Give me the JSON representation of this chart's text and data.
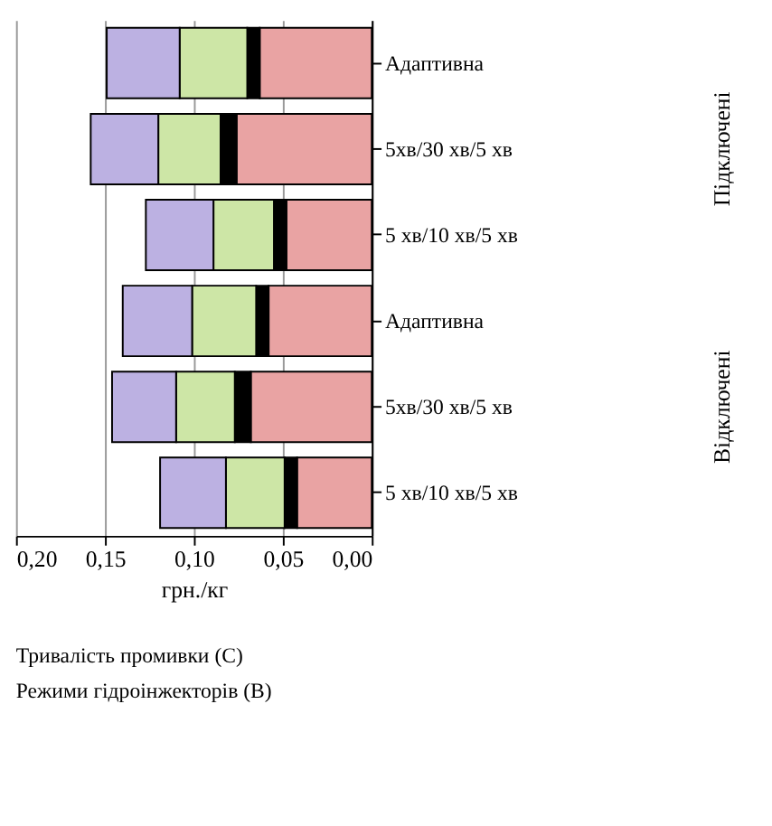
{
  "chart_data": {
    "type": "bar",
    "orientation": "horizontal",
    "stacked": true,
    "categories": [
      "Адаптивна",
      "5хв/30 хв/5 хв",
      "5 хв/10 хв/5 хв",
      "Адаптивна",
      "5хв/30 хв/5 хв",
      "5 хв/10 хв/5 хв"
    ],
    "series": [
      {
        "color": "#e9a3a3",
        "values": [
          0.063,
          0.076,
          0.048,
          0.058,
          0.068,
          0.042
        ]
      },
      {
        "color": "#000000",
        "values": [
          0.007,
          0.009,
          0.007,
          0.007,
          0.009,
          0.007
        ]
      },
      {
        "color": "#cde6a6",
        "values": [
          0.038,
          0.035,
          0.034,
          0.036,
          0.033,
          0.033
        ]
      },
      {
        "color": "#bcb1e2",
        "values": [
          0.041,
          0.038,
          0.038,
          0.039,
          0.036,
          0.037
        ]
      }
    ],
    "xlabel": "грн./кг",
    "xlim": [
      0.2,
      0.0
    ],
    "xticks": [
      {
        "value": 0.2,
        "label": "0,20"
      },
      {
        "value": 0.15,
        "label": "0,15"
      },
      {
        "value": 0.1,
        "label": "0,10"
      },
      {
        "value": 0.05,
        "label": "0,05"
      },
      {
        "value": 0.0,
        "label": "0,00"
      }
    ],
    "grid": "x",
    "annotations": [
      "Тривалість промивки (С)",
      "Режими гідроінжекторів (В)",
      "Підключені",
      "Відключені"
    ]
  }
}
